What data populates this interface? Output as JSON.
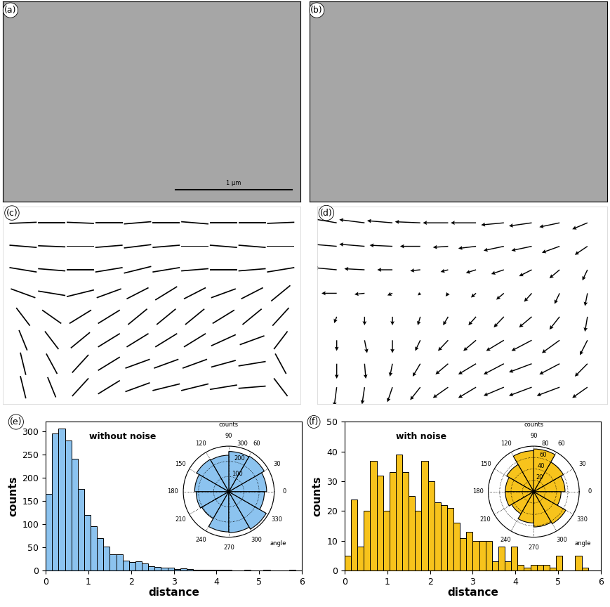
{
  "chart_data": [
    {
      "type": "image",
      "annotations": [
        "(a)",
        "1 μm"
      ]
    },
    {
      "type": "image",
      "annotations": [
        "(b)"
      ]
    },
    {
      "type": "segments",
      "annotations": [
        "(c)"
      ],
      "tick_labels": false,
      "color": "#000000",
      "x": [
        0,
        1,
        2,
        3,
        4,
        5,
        6,
        7,
        8,
        9
      ],
      "y": [
        7,
        6,
        5,
        4,
        3,
        2,
        1,
        0
      ],
      "xlim": [
        -0.7,
        9.7
      ],
      "ylim": [
        -0.7,
        7.7
      ],
      "xticks": [],
      "yticks": [],
      "u": [
        [
          1,
          1,
          1,
          1,
          1,
          1,
          1,
          1,
          1,
          1
        ],
        [
          1,
          1,
          1,
          1,
          1,
          1,
          1,
          1,
          1,
          1
        ],
        [
          1,
          1,
          1,
          1,
          1,
          1,
          1,
          1,
          1,
          1
        ],
        [
          0.9,
          1,
          1,
          0.9,
          0.8,
          0.8,
          0.8,
          0.9,
          0.8,
          0.7
        ],
        [
          0.5,
          0.7,
          0.8,
          0.8,
          0.7,
          0.7,
          0.7,
          0.8,
          0.7,
          0.6
        ],
        [
          0.3,
          0.5,
          0.7,
          0.8,
          0.8,
          0.8,
          0.8,
          0.9,
          0.9,
          0.5
        ],
        [
          0.2,
          0.4,
          0.6,
          0.8,
          0.9,
          0.9,
          0.9,
          0.9,
          1,
          0.4
        ],
        [
          0.2,
          0.3,
          0.6,
          0.8,
          0.9,
          1,
          1,
          1,
          1,
          0.5
        ]
      ],
      "v": [
        [
          0.05,
          0,
          -0.05,
          0,
          0.1,
          0,
          -0.1,
          0,
          0,
          0.05
        ],
        [
          -0.1,
          -0.05,
          0,
          0.1,
          0.15,
          0.1,
          0,
          -0.1,
          -0.1,
          0
        ],
        [
          -0.2,
          -0.1,
          0,
          0.2,
          0.3,
          0.2,
          0.1,
          0,
          0.1,
          0.2
        ],
        [
          -0.4,
          -0.2,
          0.3,
          0.4,
          0.5,
          0.6,
          0.5,
          0.4,
          0.5,
          0.7
        ],
        [
          -0.8,
          -0.6,
          0.6,
          0.6,
          0.7,
          0.7,
          0.7,
          0.6,
          0.7,
          0.8
        ],
        [
          -0.9,
          -0.8,
          0.7,
          0.6,
          0.6,
          0.6,
          0.6,
          0.5,
          0.4,
          0.8
        ],
        [
          -1,
          -0.9,
          0.8,
          0.6,
          0.4,
          0.4,
          0.4,
          0.3,
          0.2,
          -0.9
        ],
        [
          -1,
          -0.9,
          0.8,
          0.6,
          0.4,
          0.3,
          0.3,
          0.2,
          0.1,
          -0.8
        ]
      ]
    },
    {
      "type": "quiver",
      "annotations": [
        "(d)"
      ],
      "tick_labels": false,
      "color": "#000000",
      "x": [
        0,
        1,
        2,
        3,
        4,
        5,
        6,
        7,
        8,
        9
      ],
      "y": [
        7,
        6,
        5,
        4,
        3,
        2,
        1,
        0
      ],
      "xlim": [
        -0.7,
        9.7
      ],
      "ylim": [
        -0.7,
        7.7
      ],
      "xticks": [],
      "yticks": [],
      "u": [
        [
          -1,
          -1,
          -1,
          -1,
          -1,
          -1,
          -0.9,
          -0.9,
          -0.8,
          -0.6
        ],
        [
          -1,
          -1,
          -0.9,
          -0.8,
          -0.6,
          -0.7,
          -0.8,
          -0.8,
          -0.7,
          -0.5
        ],
        [
          -0.9,
          -0.8,
          -0.6,
          -0.4,
          -0.3,
          -0.4,
          -0.5,
          -0.5,
          -0.4,
          -0.2
        ],
        [
          -0.6,
          -0.4,
          -0.2,
          -0.1,
          -0.1,
          -0.2,
          -0.3,
          -0.3,
          -0.2,
          -0.1
        ],
        [
          -0.1,
          0,
          0,
          -0.1,
          -0.2,
          -0.3,
          -0.4,
          -0.5,
          -0.4,
          -0.1
        ],
        [
          0,
          0.1,
          0,
          -0.2,
          -0.4,
          -0.5,
          -0.7,
          -0.8,
          -0.7,
          -0.3
        ],
        [
          0,
          0.05,
          -0.1,
          -0.3,
          -0.5,
          -0.7,
          -0.8,
          -0.9,
          -0.8,
          -0.5
        ],
        [
          -0.1,
          -0.1,
          -0.2,
          -0.4,
          -0.6,
          -0.7,
          -0.8,
          -0.9,
          -0.9,
          -0.6
        ]
      ],
      "v": [
        [
          0.2,
          0.15,
          0.1,
          0.05,
          0,
          0,
          -0.1,
          -0.15,
          -0.2,
          -0.3
        ],
        [
          0.1,
          0.1,
          0.05,
          0,
          -0.05,
          -0.1,
          -0.2,
          -0.2,
          -0.3,
          -0.4
        ],
        [
          0.1,
          0.05,
          0,
          -0.05,
          -0.1,
          -0.15,
          -0.2,
          -0.3,
          -0.4,
          -0.5
        ],
        [
          0,
          -0.05,
          -0.1,
          -0.1,
          -0.15,
          -0.2,
          -0.3,
          -0.4,
          -0.5,
          -0.6
        ],
        [
          -0.3,
          -0.4,
          -0.4,
          -0.4,
          -0.4,
          -0.4,
          -0.5,
          -0.5,
          -0.6,
          -0.7
        ],
        [
          -0.5,
          -0.6,
          -0.6,
          -0.5,
          -0.5,
          -0.5,
          -0.5,
          -0.5,
          -0.6,
          -0.7
        ],
        [
          -0.7,
          -0.7,
          -0.6,
          -0.6,
          -0.5,
          -0.5,
          -0.5,
          -0.4,
          -0.5,
          -0.6
        ],
        [
          -0.9,
          -0.8,
          -0.7,
          -0.6,
          -0.5,
          -0.5,
          -0.4,
          -0.4,
          -0.4,
          -0.5
        ]
      ]
    },
    {
      "type": "histogram",
      "annotations": [
        "(e)"
      ],
      "title": "without noise",
      "xlabel": "distance",
      "ylabel": "counts",
      "color": "#8cc3ef",
      "grid": false,
      "bins": [
        0,
        0.15,
        0.3,
        0.45,
        0.6,
        0.75,
        0.9,
        1.05,
        1.2,
        1.35,
        1.5,
        1.65,
        1.8,
        1.95,
        2.1,
        2.25,
        2.4,
        2.55,
        2.7,
        2.85,
        3.0,
        3.15,
        3.3,
        3.45,
        3.6,
        3.75,
        3.9,
        4.05,
        4.2,
        4.35,
        4.5,
        4.65,
        4.8,
        4.95,
        5.1,
        5.25,
        5.4,
        5.55,
        5.7,
        5.85,
        6.0
      ],
      "counts": [
        165,
        295,
        305,
        280,
        240,
        175,
        120,
        95,
        70,
        52,
        35,
        35,
        22,
        18,
        20,
        15,
        10,
        8,
        6,
        6,
        4,
        5,
        3,
        2,
        2,
        1,
        1,
        2,
        1,
        0,
        0,
        1,
        0,
        0,
        1,
        0,
        0,
        0,
        1,
        0
      ],
      "xlim": [
        0,
        6
      ],
      "xticks": [
        0,
        1,
        2,
        3,
        4,
        5,
        6
      ],
      "ylim": [
        0,
        320
      ],
      "yticks": [
        0,
        50,
        100,
        150,
        200,
        250,
        300
      ]
    },
    {
      "type": "polar_bar",
      "ylabel": "counts",
      "xlabel": "angle",
      "color": "#8cc3ef",
      "grid": true,
      "bins": [
        0,
        30,
        60,
        90,
        120,
        150,
        180,
        210,
        240,
        270,
        300,
        330,
        360
      ],
      "counts": [
        250,
        270,
        265,
        240,
        245,
        225,
        215,
        205,
        265,
        270,
        285,
        235
      ],
      "xticks": [
        0,
        30,
        60,
        90,
        120,
        150,
        180,
        210,
        240,
        270,
        300,
        330
      ],
      "ylim": [
        0,
        300
      ],
      "yticks": [
        100,
        200,
        300
      ]
    },
    {
      "type": "histogram",
      "annotations": [
        "(f)"
      ],
      "title": "with noise",
      "xlabel": "distance",
      "ylabel": "counts",
      "color": "#f7c31c",
      "grid": false,
      "bins": [
        0,
        0.15,
        0.3,
        0.45,
        0.6,
        0.75,
        0.9,
        1.05,
        1.2,
        1.35,
        1.5,
        1.65,
        1.8,
        1.95,
        2.1,
        2.25,
        2.4,
        2.55,
        2.7,
        2.85,
        3.0,
        3.15,
        3.3,
        3.45,
        3.6,
        3.75,
        3.9,
        4.05,
        4.2,
        4.35,
        4.5,
        4.65,
        4.8,
        4.95,
        5.1,
        5.25,
        5.4,
        5.55,
        5.7,
        5.85,
        6.0
      ],
      "counts": [
        5,
        24,
        8,
        20,
        37,
        32,
        20,
        33,
        39,
        33,
        25,
        20,
        37,
        30,
        23,
        22,
        21,
        16,
        11,
        13,
        10,
        10,
        10,
        3,
        8,
        3,
        8,
        2,
        1,
        2,
        2,
        2,
        1,
        5,
        0,
        0,
        5,
        1,
        0,
        0
      ],
      "xlim": [
        0,
        6
      ],
      "xticks": [
        0,
        1,
        2,
        3,
        4,
        5,
        6
      ],
      "ylim": [
        0,
        50
      ],
      "yticks": [
        0,
        10,
        20,
        30,
        40,
        50
      ]
    },
    {
      "type": "polar_bar",
      "ylabel": "counts",
      "xlabel": "angle",
      "color": "#f7c31c",
      "grid": true,
      "bins": [
        0,
        30,
        60,
        90,
        120,
        150,
        180,
        210,
        240,
        270,
        300,
        330,
        360
      ],
      "counts": [
        55,
        60,
        75,
        72,
        55,
        50,
        50,
        45,
        55,
        62,
        65,
        48
      ],
      "xticks": [
        0,
        30,
        60,
        90,
        120,
        150,
        180,
        210,
        240,
        270,
        300,
        330
      ],
      "ylim": [
        0,
        80
      ],
      "yticks": [
        20,
        40,
        60,
        80
      ]
    }
  ]
}
